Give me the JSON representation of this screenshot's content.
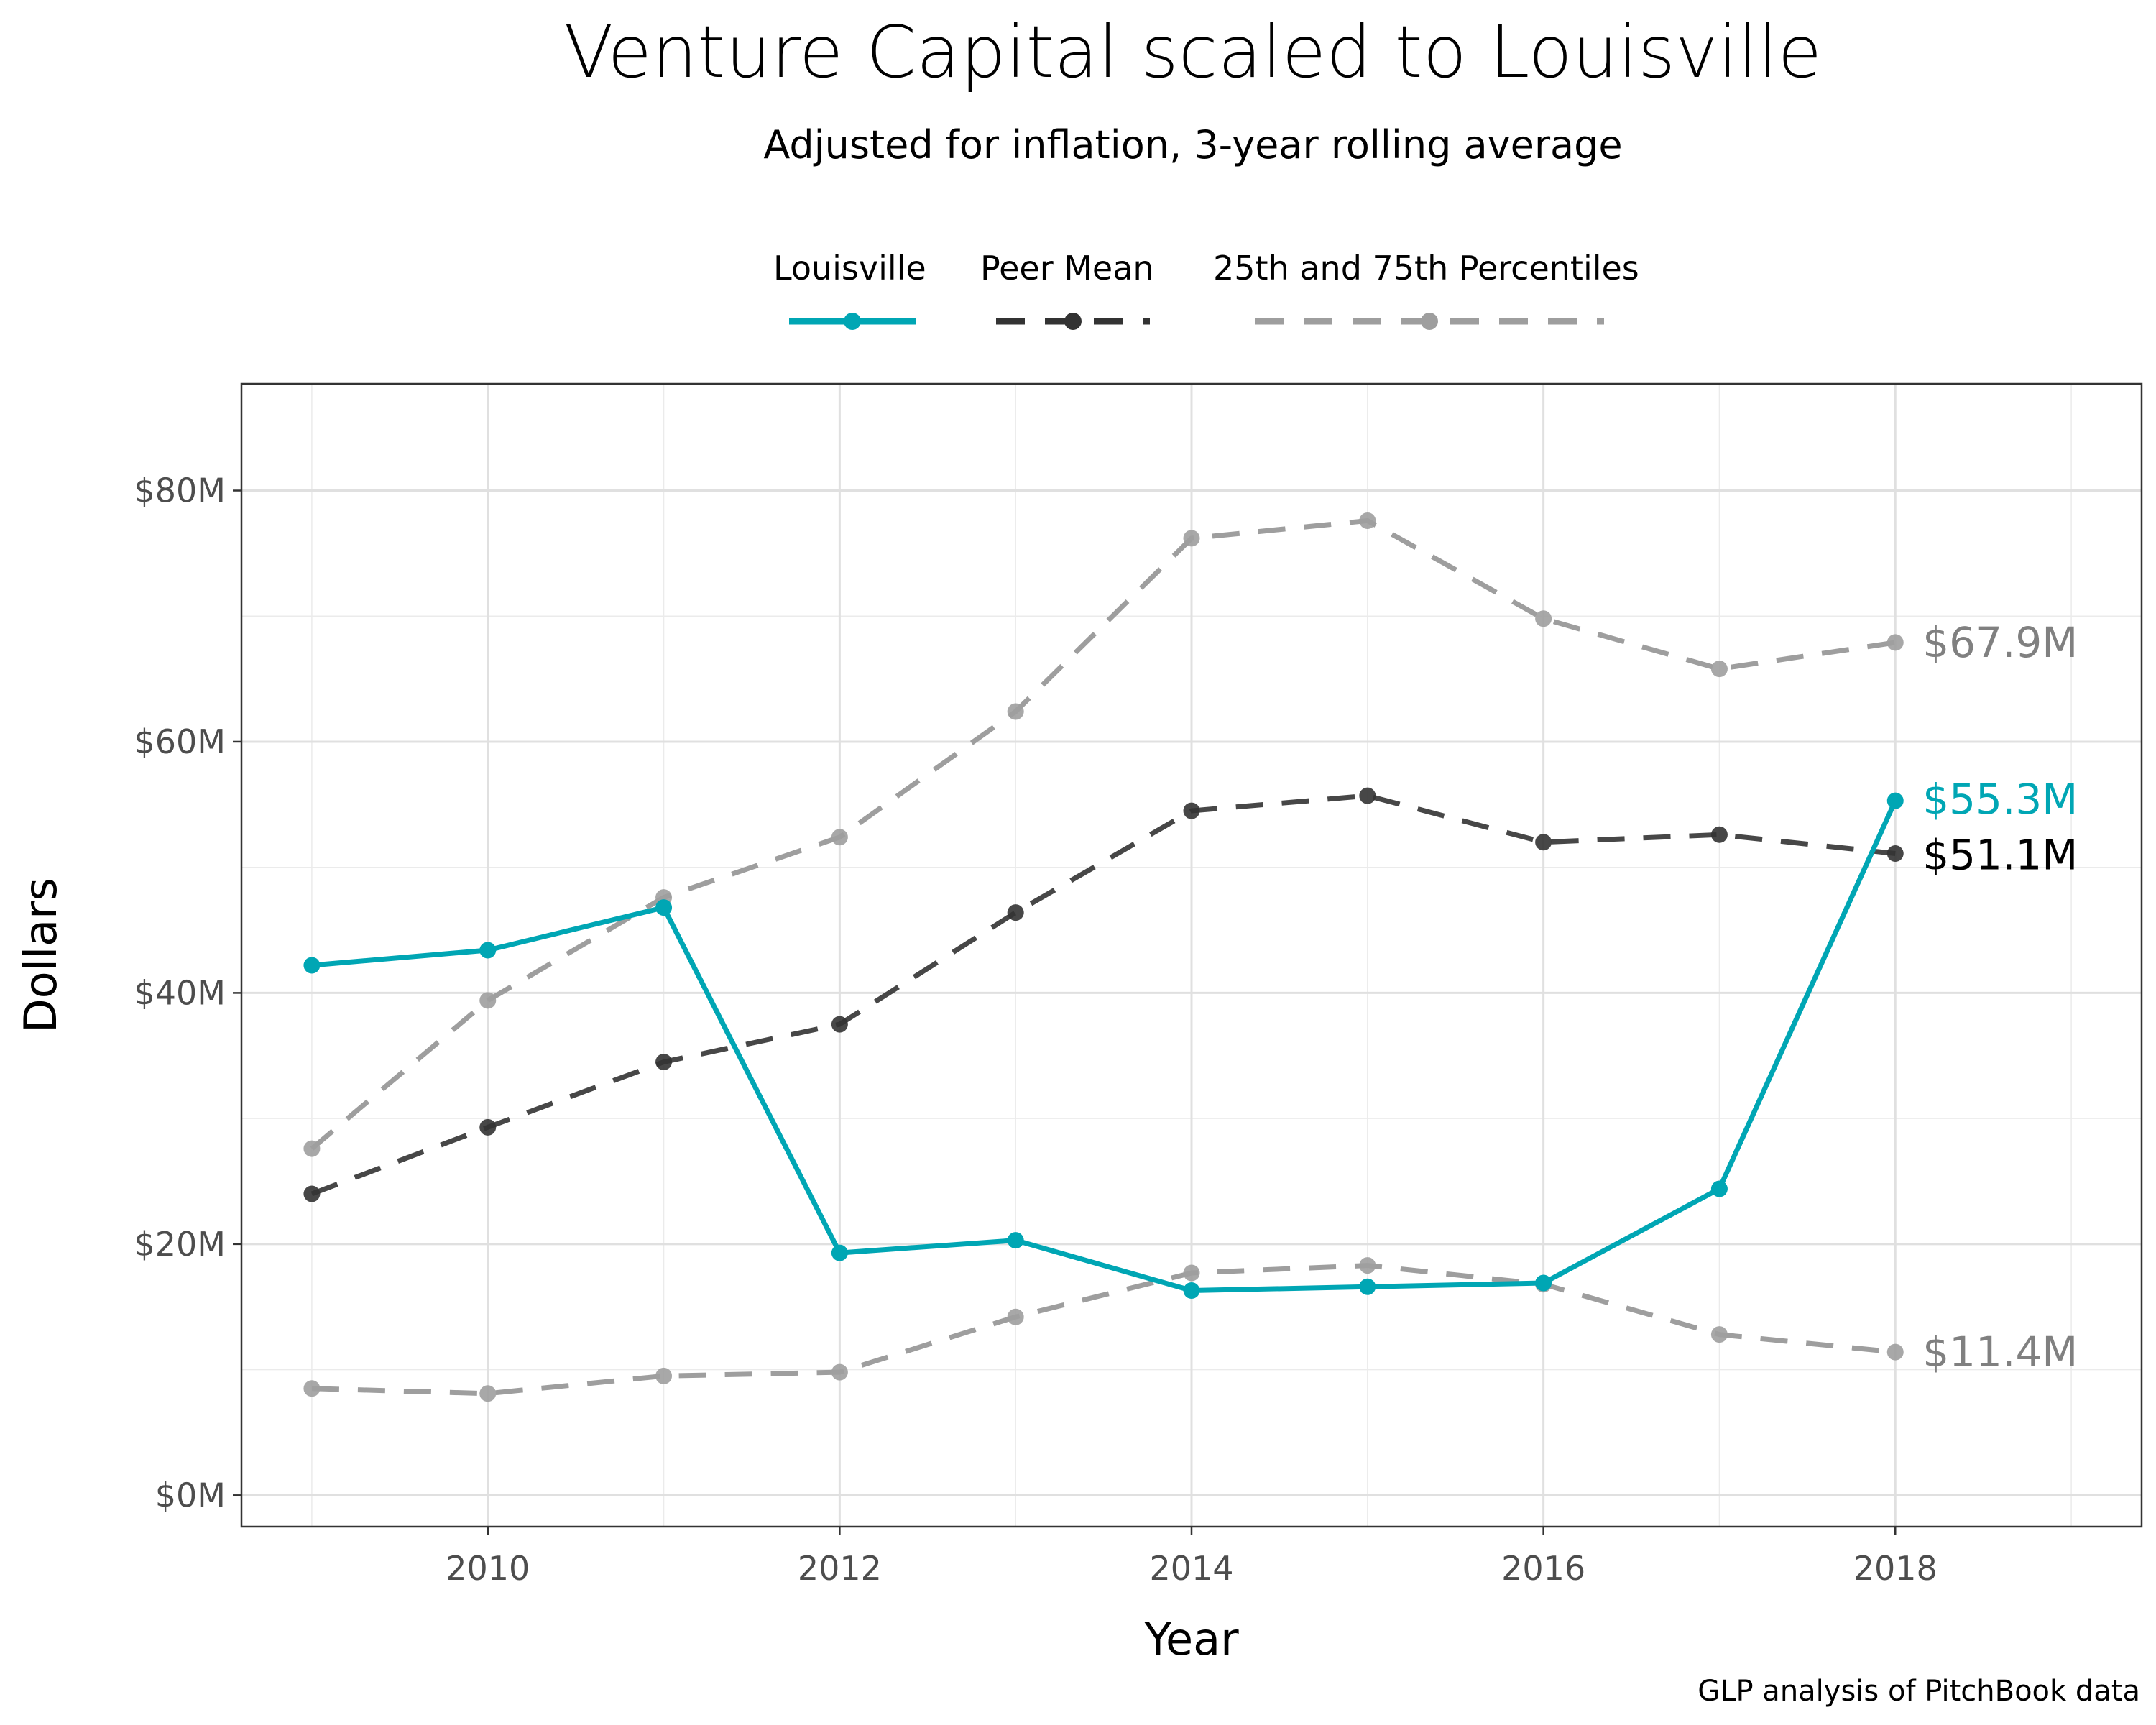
{
  "chart_data": {
    "type": "line",
    "title": "Venture Capital scaled to Louisville",
    "subtitle": "Adjusted for inflation, 3-year rolling average",
    "xlabel": "Year",
    "ylabel": "Dollars",
    "caption": "GLP analysis of PitchBook data",
    "xlim": [
      2008.6,
      2019.4
    ],
    "ylim": [
      -2.5,
      88.5
    ],
    "x_ticks": [
      2010,
      2012,
      2014,
      2016,
      2018
    ],
    "y_ticks": [
      0,
      20,
      40,
      60,
      80
    ],
    "y_tick_labels": [
      "$0M",
      "$20M",
      "$40M",
      "$60M",
      "$80M"
    ],
    "grid": true,
    "legend_position": "top",
    "x": [
      2009,
      2010,
      2011,
      2012,
      2013,
      2014,
      2015,
      2016,
      2017,
      2018
    ],
    "series": [
      {
        "name": "Louisville",
        "color": "#00A6B4",
        "style": "solid",
        "values": [
          42.2,
          43.4,
          46.8,
          19.3,
          20.3,
          16.3,
          16.6,
          16.9,
          24.4,
          55.3
        ],
        "end_label": "$55.3M"
      },
      {
        "name": "Peer Mean",
        "color": "#333333",
        "style": "dashed",
        "values": [
          24.0,
          29.3,
          34.5,
          37.5,
          46.4,
          54.5,
          55.7,
          52.0,
          52.6,
          51.1
        ],
        "end_label": "$51.1M"
      },
      {
        "name": "25th and 75th Percentiles",
        "color": "#9E9E9E",
        "style": "dashed",
        "lines": [
          {
            "values": [
              27.6,
              39.4,
              47.6,
              52.4,
              62.4,
              76.2,
              77.6,
              69.8,
              65.8,
              67.9
            ],
            "end_label": "$67.9M"
          },
          {
            "values": [
              8.5,
              8.1,
              9.5,
              9.8,
              14.2,
              17.7,
              18.3,
              16.8,
              12.8,
              11.4
            ],
            "end_label": "$11.4M"
          }
        ]
      }
    ]
  }
}
